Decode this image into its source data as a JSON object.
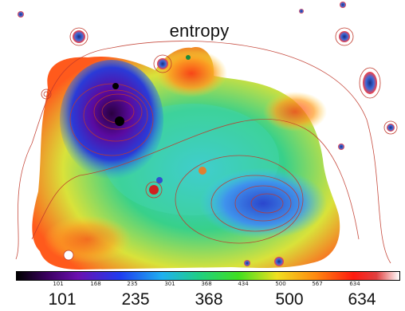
{
  "title": "entropy",
  "colorbar": {
    "small_ticks": [
      "101",
      "168",
      "235",
      "301",
      "368",
      "434",
      "500",
      "567",
      "634"
    ],
    "big_ticks": [
      "101",
      "235",
      "368",
      "500",
      "634"
    ],
    "range": [
      101,
      634
    ]
  },
  "colors": {
    "contour": "#c0392b",
    "background": "#ffffff"
  }
}
